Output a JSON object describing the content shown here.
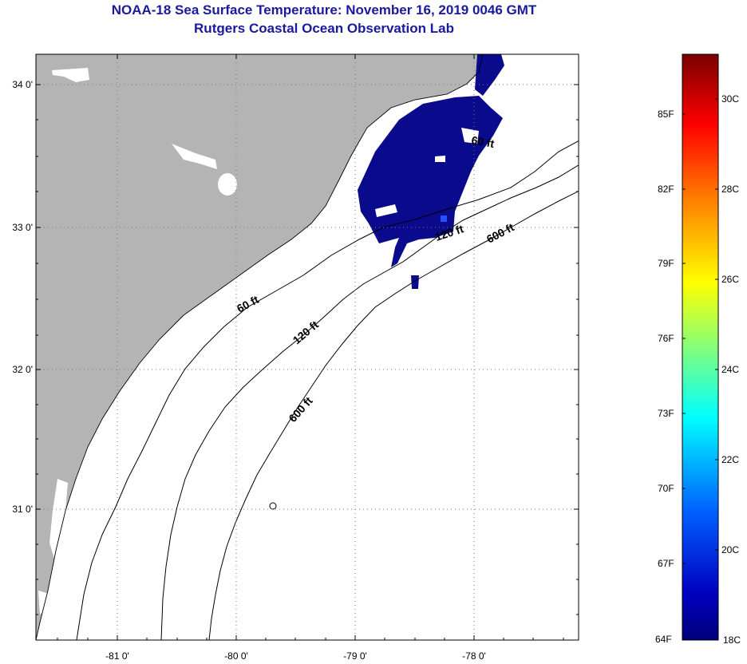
{
  "header": {
    "title": "NOAA-18 Sea Surface Temperature:  November 16, 2019 0046 GMT",
    "subtitle": "Rutgers Coastal Ocean Observation Lab"
  },
  "map": {
    "lat_labels": [
      "34 0'",
      "33 0'",
      "32 0'",
      "31 0'"
    ],
    "lon_labels": [
      "-81 0'",
      "-80 0'",
      "-79 0'",
      "-78 0'"
    ],
    "contour_labels": [
      "60 ft",
      "120 ft",
      "600 ft",
      "60 ft",
      "120 ft",
      "600 ft"
    ],
    "colors": {
      "land": "#b4b4b4",
      "cold_water": "#0a0a8c",
      "ocean": "#ffffff"
    }
  },
  "colorbar": {
    "fahrenheit_labels": [
      "85F",
      "82F",
      "79F",
      "76F",
      "73F",
      "70F",
      "67F",
      "64F"
    ],
    "celsius_labels": [
      "30C",
      "28C",
      "26C",
      "24C",
      "22C",
      "20C",
      "18C"
    ],
    "gradient_colors": [
      "#7a0000",
      "#ff0000",
      "#ff8000",
      "#ffff00",
      "#00ffff",
      "#0060ff",
      "#0000c0",
      "#00007a"
    ]
  }
}
